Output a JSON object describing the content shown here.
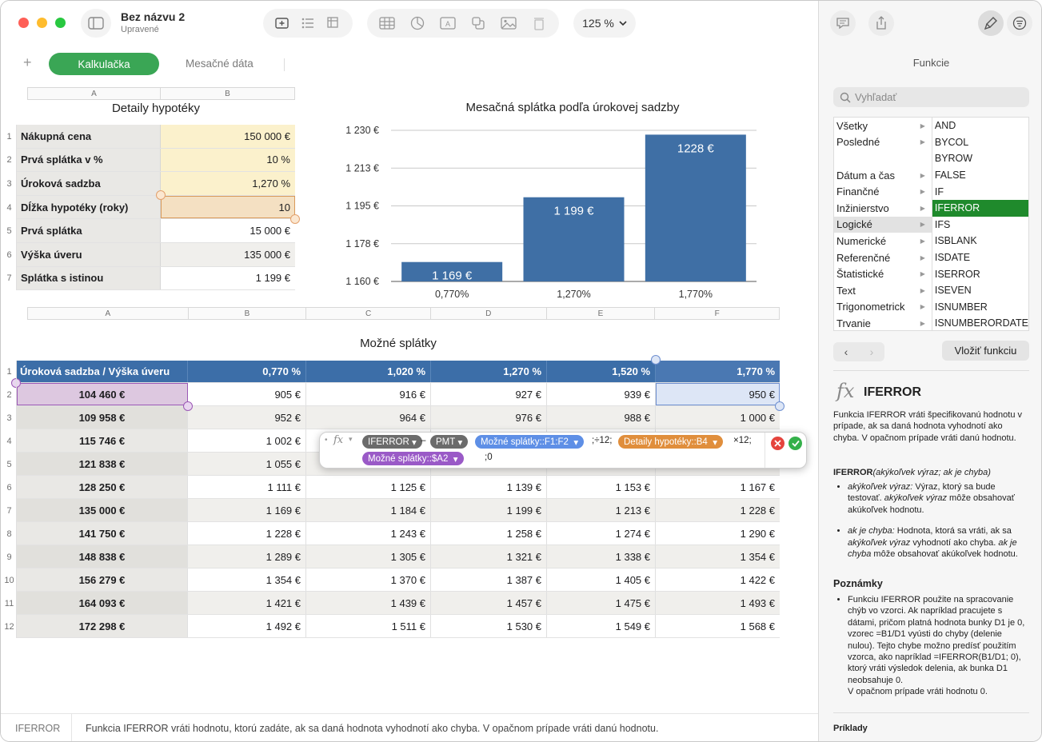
{
  "window": {
    "doc_title": "Bez názvu 2",
    "doc_subtitle": "Upravené",
    "zoom": "125 %"
  },
  "tabs": {
    "add": "+",
    "active": "Kalkulačka",
    "other": "Mesačné dáta"
  },
  "table1": {
    "title": "Detaily hypotéky",
    "col_headers": [
      "A",
      "B"
    ],
    "rows": [
      {
        "num": "1",
        "label": "Nákupná cena",
        "value": "150 000 €"
      },
      {
        "num": "2",
        "label": "Prvá splátka v %",
        "value": "10 %"
      },
      {
        "num": "3",
        "label": "Úroková sadzba",
        "value": "1,270 %"
      },
      {
        "num": "4",
        "label": "Dĺžka hypotéky (roky)",
        "value": "10"
      },
      {
        "num": "5",
        "label": "Prvá splátka",
        "value": "15 000 €"
      },
      {
        "num": "6",
        "label": "Výška úveru",
        "value": "135 000 €"
      },
      {
        "num": "7",
        "label": "Splátka s istinou",
        "value": "1 199 €"
      }
    ]
  },
  "chart_data": {
    "type": "bar",
    "title": "Mesačná splátka podľa úrokovej sadzby",
    "categories": [
      "0,770%",
      "1,270%",
      "1,770%"
    ],
    "values": [
      1169,
      1199,
      1228
    ],
    "data_labels": [
      "1 169 €",
      "1 199 €",
      "1228 €"
    ],
    "y_ticks": [
      "1 160 €",
      "1 178 €",
      "1 195 €",
      "1 213 €",
      "1 230 €"
    ],
    "ylim": [
      1160,
      1230
    ],
    "grid": true,
    "bar_color": "#3f6fa5"
  },
  "table2": {
    "title": "Možné splátky",
    "col_headers": [
      "A",
      "B",
      "C",
      "D",
      "E",
      "F"
    ],
    "header": [
      "Úroková sadzba / Výška úveru",
      "0,770 %",
      "1,020 %",
      "1,270 %",
      "1,520 %",
      "1,770 %"
    ],
    "rows": [
      {
        "num": "2",
        "cells": [
          "104 460 €",
          "905 €",
          "916 €",
          "927 €",
          "939 €",
          "950 €"
        ]
      },
      {
        "num": "3",
        "cells": [
          "109 958 €",
          "952 €",
          "964 €",
          "976 €",
          "988 €",
          "1 000 €"
        ]
      },
      {
        "num": "4",
        "cells": [
          "115 746 €",
          "1 002 €",
          "",
          "",
          "",
          ""
        ]
      },
      {
        "num": "5",
        "cells": [
          "121 838 €",
          "1 055 €",
          "",
          "",
          "",
          ""
        ]
      },
      {
        "num": "6",
        "cells": [
          "128 250 €",
          "1 111 €",
          "1 125 €",
          "1 139 €",
          "1 153 €",
          "1 167 €"
        ]
      },
      {
        "num": "7",
        "cells": [
          "135 000 €",
          "1 169 €",
          "1 184 €",
          "1 199 €",
          "1 213 €",
          "1 228 €"
        ]
      },
      {
        "num": "8",
        "cells": [
          "141 750 €",
          "1 228 €",
          "1 243 €",
          "1 258 €",
          "1 274 €",
          "1 290 €"
        ]
      },
      {
        "num": "9",
        "cells": [
          "148 838 €",
          "1 289 €",
          "1 305 €",
          "1 321 €",
          "1 338 €",
          "1 354 €"
        ]
      },
      {
        "num": "10",
        "cells": [
          "156 279 €",
          "1 354 €",
          "1 370 €",
          "1 387 €",
          "1 405 €",
          "1 422 €"
        ]
      },
      {
        "num": "11",
        "cells": [
          "164 093 €",
          "1 421 €",
          "1 439 €",
          "1 457 €",
          "1 475 €",
          "1 493 €"
        ]
      },
      {
        "num": "12",
        "cells": [
          "172 298 €",
          "1 492 €",
          "1 511 €",
          "1 530 €",
          "1 549 €",
          "1 568 €"
        ]
      }
    ]
  },
  "formula": {
    "fx": "fx",
    "iferror": "IFERROR",
    "minus": "–",
    "pmt": "PMT",
    "ref1": "Možné splátky::F1:F2",
    "div12": ";÷12;",
    "ref2": "Detaily hypotéky::B4",
    "times12": "×12;",
    "ref3": "Možné splátky::$A2",
    "tail": ";0"
  },
  "statusbar": {
    "function": "IFERROR",
    "description": "Funkcia IFERROR vráti hodnotu, ktorú zadáte, ak sa daná hodnota vyhodnotí ako chyba. V opačnom prípade vráti danú hodnotu."
  },
  "sidebar": {
    "title": "Funkcie",
    "search_placeholder": "Vyhľadať",
    "categories": [
      "Všetky",
      "Posledné",
      "",
      "Dátum a čas",
      "Finančné",
      "Inžinierstvo",
      "Logické",
      "Numerické",
      "Referenčné",
      "Štatistické",
      "Text",
      "Trigonometrick",
      "Trvanie"
    ],
    "functions": [
      "AND",
      "BYCOL",
      "BYROW",
      "FALSE",
      "IF",
      "IFERROR",
      "IFS",
      "ISBLANK",
      "ISDATE",
      "ISERROR",
      "ISEVEN",
      "ISNUMBER",
      "ISNUMBERORDATE"
    ],
    "insert_button": "Vložiť funkciu",
    "fn_name": "IFERROR",
    "fn_desc": "Funkcia IFERROR vráti špecifikovanú hodnotu v prípade, ak sa daná hodnota vyhodnotí ako chyba. V opačnom prípade vráti danú hodnotu.",
    "syntax_name": "IFERROR",
    "syntax_args": "(akýkoľvek výraz; ak je chyba)",
    "arg1_name": "akýkoľvek výraz:",
    "arg1_text1": " Výraz, ktorý sa bude testovať. ",
    "arg1_em": "akýkoľvek výraz",
    "arg1_text2": " môže obsahovať akúkoľvek hodnotu.",
    "arg2_name": "ak je chyba:",
    "arg2_text1": " Hodnota, ktorá sa vráti, ak sa ",
    "arg2_em1": "akýkoľvek výraz",
    "arg2_text2": " vyhodnotí ako chyba. ",
    "arg2_em2": "ak je chyba",
    "arg2_text3": " môže obsahovať akúkoľvek hodnotu.",
    "notes_heading": "Poznámky",
    "notes_text1": "Funkciu IFERROR použite na spracovanie chýb vo vzorci. Ak napríklad pracujete s dátami, pričom platná hodnota bunky D1 je 0, vzorec =B1/D1 vyústi do chyby (delenie nulou). Tejto chybe možno predísť použitím vzorca, ako napríklad =IFERROR(B1/D1; 0), ktorý vráti výsledok delenia, ak bunka D1 neobsahuje 0.",
    "notes_text2": "V opačnom prípade vráti hodnotu 0.",
    "examples_heading": "Príklady"
  }
}
